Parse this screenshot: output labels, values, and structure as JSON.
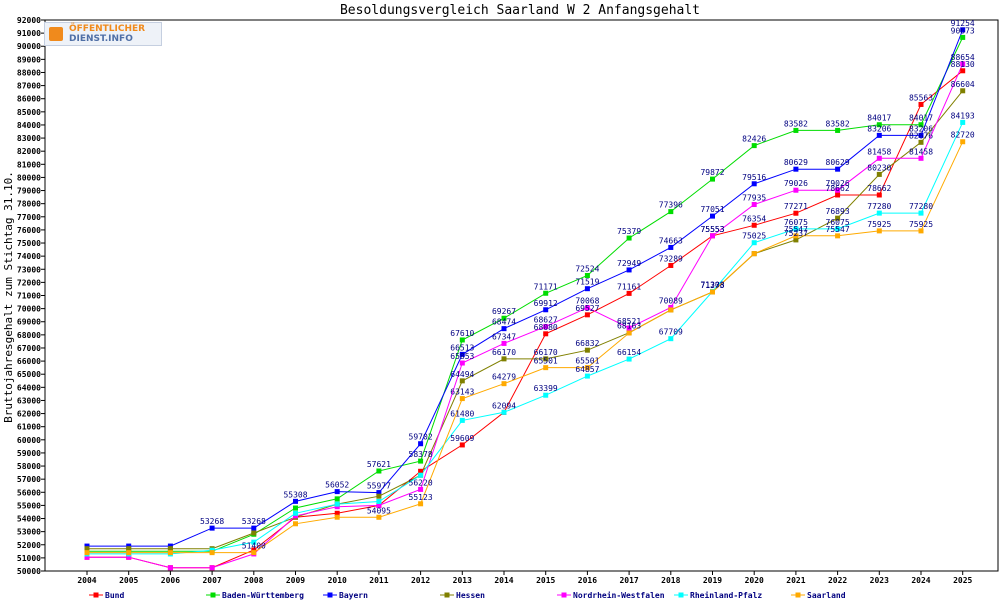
{
  "logo": {
    "line1": "ÖFFENTLICHER",
    "line2": "DIENST.INFO"
  },
  "chart_data": {
    "type": "line",
    "title": "Besoldungsvergleich Saarland W 2 Anfangsgehalt",
    "xlabel": "",
    "ylabel": "Bruttojahresgehalt zum Stichtag 31.10.",
    "ylim": [
      50000,
      92000
    ],
    "ytick_step": 1000,
    "grid": false,
    "legend_position": "bottom",
    "x": [
      "2004",
      "2005",
      "2006",
      "2007",
      "2008",
      "2009",
      "2010",
      "2011",
      "2012",
      "2013",
      "2014",
      "2015",
      "2016",
      "2017",
      "2018",
      "2019",
      "2020",
      "2021",
      "2022",
      "2023",
      "2024",
      "2025"
    ],
    "series": [
      {
        "name": "Bund",
        "color": "#ff0000",
        "values": [
          51049,
          51049,
          50249,
          50249,
          51600,
          54100,
          54400,
          55000,
          57600,
          59609,
          62094,
          68080,
          69527,
          71161,
          73289,
          75553,
          76354,
          77271,
          78662,
          78662,
          85563,
          88130
        ],
        "labels": [
          false,
          false,
          false,
          false,
          false,
          false,
          false,
          false,
          false,
          true,
          false,
          true,
          true,
          true,
          true,
          true,
          true,
          true,
          true,
          true,
          true,
          true
        ]
      },
      {
        "name": "Baden-Württemberg",
        "color": "#00dd00",
        "values": [
          51500,
          51500,
          51500,
          51500,
          52800,
          54800,
          55500,
          57621,
          58378,
          67610,
          69267,
          71171,
          72524,
          75379,
          77396,
          79872,
          82426,
          83582,
          83582,
          84017,
          84017,
          90673
        ],
        "labels": [
          false,
          false,
          false,
          false,
          false,
          false,
          false,
          true,
          true,
          true,
          true,
          true,
          true,
          true,
          true,
          true,
          true,
          true,
          true,
          true,
          true,
          true
        ]
      },
      {
        "name": "Bayern",
        "color": "#0000ff",
        "values": [
          51900,
          51900,
          51900,
          53268,
          53268,
          55308,
          56052,
          55977,
          59702,
          66513,
          68474,
          69912,
          71519,
          72949,
          74663,
          77051,
          79516,
          80629,
          80629,
          83206,
          83206,
          91254
        ],
        "labels": [
          false,
          false,
          false,
          true,
          true,
          true,
          true,
          true,
          true,
          true,
          true,
          true,
          true,
          true,
          true,
          true,
          true,
          true,
          true,
          true,
          true,
          true
        ]
      },
      {
        "name": "Hessen",
        "color": "#808000",
        "values": [
          51700,
          51700,
          51700,
          51700,
          52900,
          54100,
          55100,
          55700,
          57300,
          64494,
          66170,
          66170,
          66832,
          68163,
          69900,
          71273,
          74190,
          75237,
          76893,
          80230,
          82676,
          86604
        ],
        "labels": [
          false,
          false,
          false,
          false,
          false,
          false,
          false,
          false,
          false,
          true,
          true,
          true,
          true,
          true,
          false,
          true,
          false,
          true,
          true,
          true,
          true,
          true
        ]
      },
      {
        "name": "Nordrhein-Westfalen",
        "color": "#ff00ff",
        "values": [
          51049,
          51049,
          50249,
          50249,
          51300,
          54200,
          54900,
          55000,
          56220,
          65853,
          67347,
          68627,
          70068,
          68521,
          70089,
          75553,
          77935,
          79026,
          79026,
          81458,
          81458,
          88654
        ],
        "labels": [
          false,
          false,
          false,
          false,
          false,
          false,
          false,
          false,
          true,
          true,
          true,
          true,
          true,
          true,
          true,
          true,
          true,
          true,
          true,
          true,
          true,
          true
        ]
      },
      {
        "name": "Rheinland-Pfalz",
        "color": "#00ffff",
        "values": [
          51300,
          51300,
          51300,
          51586,
          52200,
          54400,
          55100,
          55300,
          57300,
          61480,
          62094,
          63399,
          64857,
          66154,
          67709,
          71308,
          75025,
          76075,
          76075,
          77280,
          77280,
          84193
        ],
        "labels": [
          false,
          false,
          false,
          false,
          false,
          false,
          false,
          false,
          false,
          true,
          true,
          true,
          true,
          true,
          true,
          true,
          true,
          true,
          true,
          true,
          true,
          true
        ]
      },
      {
        "name": "Saarland",
        "color": "#ffaa00",
        "values": [
          51400,
          51400,
          51400,
          51400,
          51400,
          53600,
          54100,
          54095,
          55123,
          63143,
          64279,
          65501,
          65501,
          68141,
          69900,
          71273,
          74190,
          75547,
          75547,
          75925,
          75925,
          82720
        ],
        "labels": [
          false,
          false,
          false,
          false,
          true,
          false,
          false,
          true,
          true,
          true,
          true,
          true,
          true,
          false,
          false,
          false,
          false,
          true,
          true,
          true,
          true,
          true
        ]
      }
    ]
  }
}
